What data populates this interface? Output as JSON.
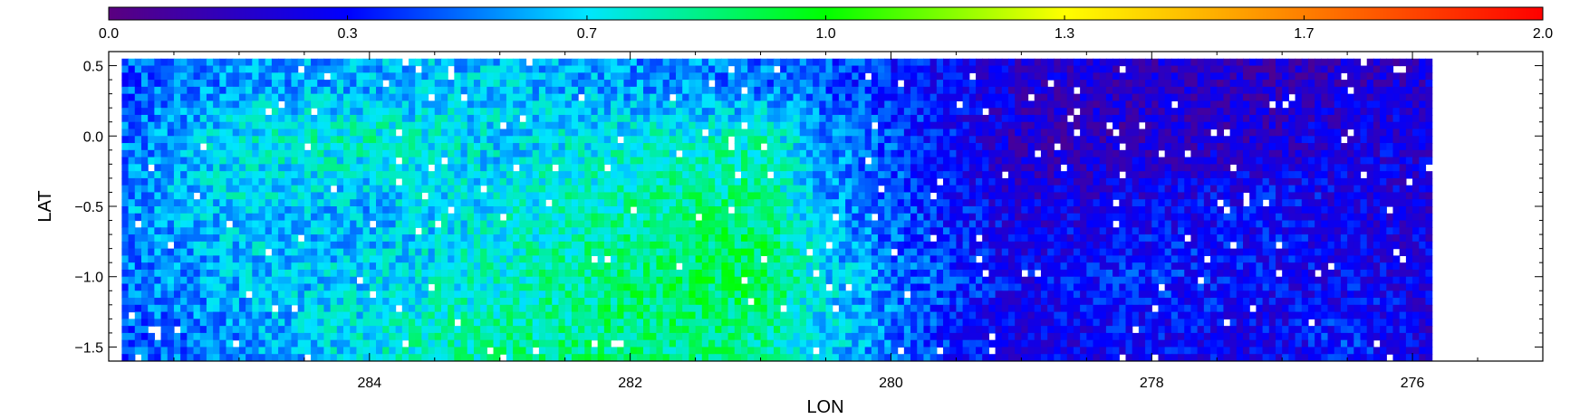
{
  "chart_data": {
    "type": "heatmap",
    "title": "",
    "xlabel": "LON",
    "ylabel": "LAT",
    "xlim": [
      286.0,
      275.0
    ],
    "ylim": [
      -1.6,
      0.6
    ],
    "x_reversed": true,
    "x_ticks": [
      284,
      282,
      280,
      278,
      276
    ],
    "x_tick_labels": [
      "284",
      "282",
      "280",
      "278",
      "276"
    ],
    "y_ticks": [
      0.5,
      0.0,
      -0.5,
      -1.0,
      -1.5
    ],
    "y_tick_labels": [
      "0.5",
      "0.0",
      "−0.5",
      "−1.0",
      "−1.5"
    ],
    "data_extent": {
      "lon": [
        285.9,
        275.9
      ],
      "lat": [
        -1.55,
        0.55
      ]
    },
    "colorbar": {
      "range": [
        0.0,
        2.0
      ],
      "ticks": [
        0.0,
        0.333,
        0.667,
        1.0,
        1.333,
        1.667,
        2.0
      ],
      "tick_labels": [
        "0.0",
        "0.3",
        "0.7",
        "1.0",
        "1.3",
        "1.7",
        "2.0"
      ],
      "colormap": "rainbow",
      "colors": [
        "#5a007f",
        "#0000ff",
        "#00e5ff",
        "#00ff00",
        "#ffff00",
        "#ff7f00",
        "#ff0000"
      ],
      "placement": "top"
    },
    "field_description_values": {
      "grid": [
        [
          0.45,
          0.55,
          0.6,
          0.62,
          0.55,
          0.5,
          0.45,
          0.3,
          0.22,
          0.2,
          0.18,
          0.2,
          0.22
        ],
        [
          0.5,
          0.7,
          0.75,
          0.65,
          0.7,
          0.75,
          0.55,
          0.32,
          0.18,
          0.18,
          0.22,
          0.28,
          0.25
        ],
        [
          0.55,
          0.65,
          0.6,
          0.7,
          0.8,
          0.85,
          0.55,
          0.35,
          0.25,
          0.3,
          0.35,
          0.28,
          0.25
        ],
        [
          0.5,
          0.6,
          0.65,
          0.75,
          0.85,
          0.9,
          0.65,
          0.4,
          0.3,
          0.4,
          0.3,
          0.3,
          0.28
        ],
        [
          0.45,
          0.55,
          0.7,
          0.8,
          0.85,
          0.8,
          0.65,
          0.35,
          0.28,
          0.32,
          0.3,
          0.4,
          0.25
        ]
      ],
      "grid_lat": [
        0.4,
        0.0,
        -0.5,
        -1.0,
        -1.4
      ],
      "grid_lon": [
        285.9,
        285.0,
        284.0,
        283.0,
        282.0,
        281.0,
        280.5,
        279.5,
        279.0,
        278.0,
        277.0,
        276.5,
        275.9
      ]
    },
    "missing_value_color": "#ffffff"
  }
}
